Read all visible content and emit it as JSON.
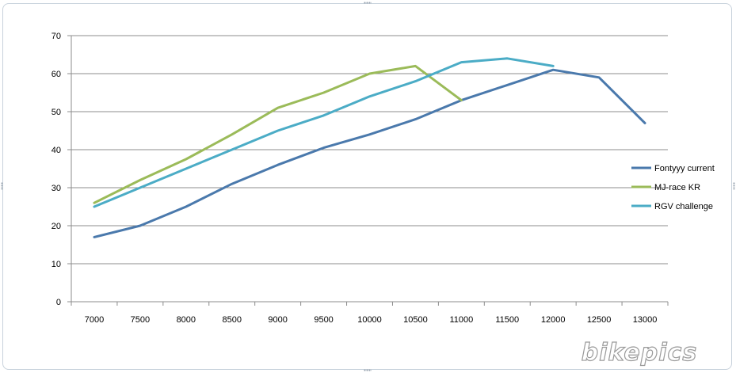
{
  "chart_data": {
    "type": "line",
    "categories": [
      "7000",
      "7500",
      "8000",
      "8500",
      "9000",
      "9500",
      "10000",
      "10500",
      "11000",
      "11500",
      "12000",
      "12500",
      "13000"
    ],
    "yticks": [
      "0",
      "10",
      "20",
      "30",
      "40",
      "50",
      "60",
      "70"
    ],
    "ylim": [
      0,
      70
    ],
    "grid": true,
    "legend_position": "right",
    "series": [
      {
        "name": "Fontyyy current",
        "color": "#4a79ac",
        "values": [
          17,
          20,
          25,
          31,
          36,
          40.5,
          44,
          48,
          53,
          57,
          61,
          59,
          47
        ]
      },
      {
        "name": "MJ-race KR",
        "color": "#9bbb59",
        "values": [
          26,
          32,
          37.5,
          44,
          51,
          55,
          60,
          62,
          53,
          null,
          null,
          null,
          null
        ]
      },
      {
        "name": "RGV challenge",
        "color": "#4bacc6",
        "values": [
          25,
          30,
          35,
          40,
          45,
          49,
          54,
          58,
          63,
          64,
          62,
          null,
          null
        ]
      }
    ]
  },
  "watermark": {
    "text": "bikepics"
  }
}
